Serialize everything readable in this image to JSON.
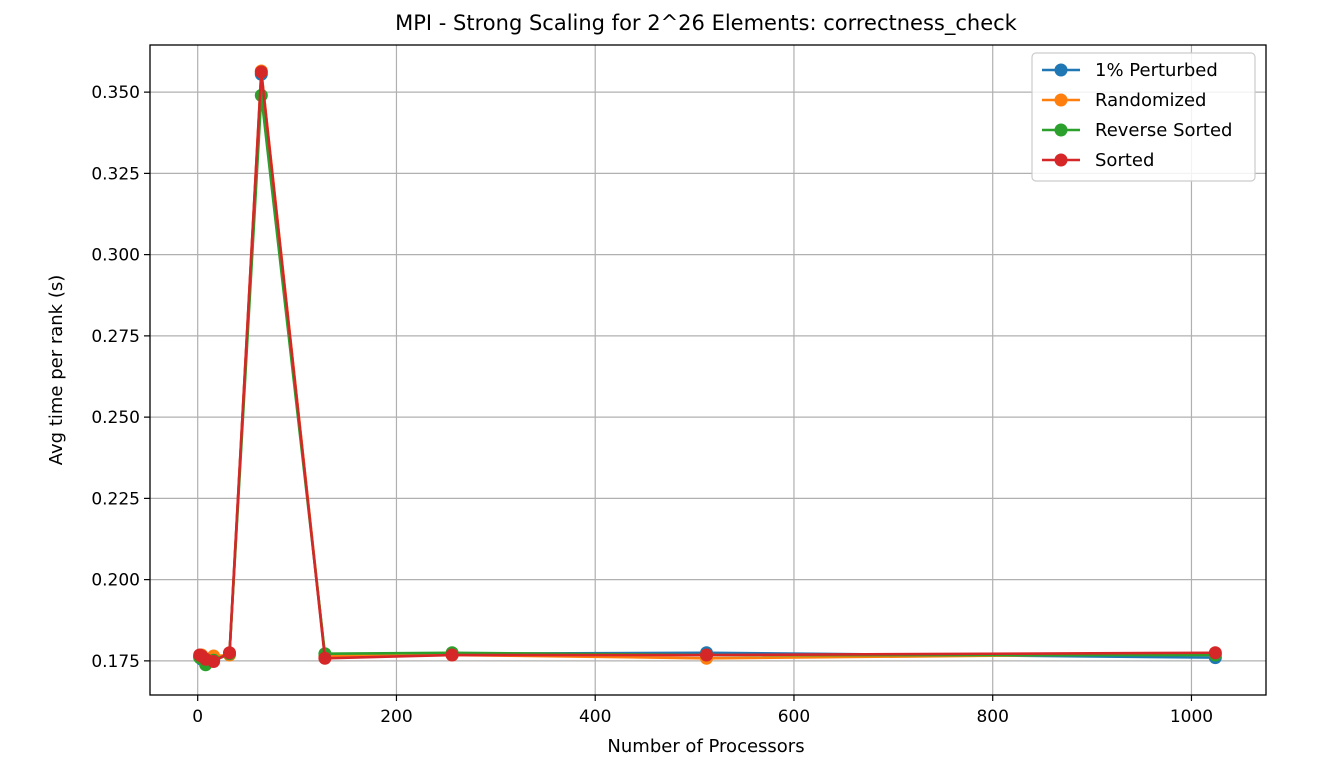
{
  "chart_data": {
    "type": "line",
    "title": "MPI - Strong Scaling for 2^26 Elements: correctness_check",
    "xlabel": "Number of Processors",
    "ylabel": "Avg time per rank (s)",
    "xlim": [
      -48,
      1075
    ],
    "ylim": [
      0.1645,
      0.3645
    ],
    "x": [
      2,
      4,
      8,
      16,
      32,
      64,
      128,
      256,
      512,
      1024
    ],
    "xticks": [
      0,
      200,
      400,
      600,
      800,
      1000
    ],
    "xtick_labels": [
      "0",
      "200",
      "400",
      "600",
      "800",
      "1000"
    ],
    "yticks": [
      0.175,
      0.2,
      0.225,
      0.25,
      0.275,
      0.3,
      0.325,
      0.35
    ],
    "ytick_labels": [
      "0.175",
      "0.200",
      "0.225",
      "0.250",
      "0.275",
      "0.300",
      "0.325",
      "0.350"
    ],
    "grid": true,
    "legend_position": "top-right",
    "series": [
      {
        "name": "1% Perturbed",
        "color": "#1f77b4",
        "values": [
          0.1765,
          0.1755,
          0.1748,
          0.1752,
          0.177,
          0.3555,
          0.1765,
          0.1772,
          0.1775,
          0.176
        ]
      },
      {
        "name": "Randomized",
        "color": "#ff7f0e",
        "values": [
          0.1762,
          0.1768,
          0.175,
          0.1765,
          0.1768,
          0.3565,
          0.1765,
          0.1768,
          0.1758,
          0.1772
        ]
      },
      {
        "name": "Reverse Sorted",
        "color": "#2ca02c",
        "values": [
          0.176,
          0.1758,
          0.1738,
          0.1752,
          0.1772,
          0.349,
          0.1772,
          0.1775,
          0.1768,
          0.1768
        ]
      },
      {
        "name": "Sorted",
        "color": "#d62728",
        "values": [
          0.1768,
          0.1765,
          0.1755,
          0.1748,
          0.1775,
          0.3562,
          0.1758,
          0.1768,
          0.1768,
          0.1775
        ]
      }
    ]
  }
}
